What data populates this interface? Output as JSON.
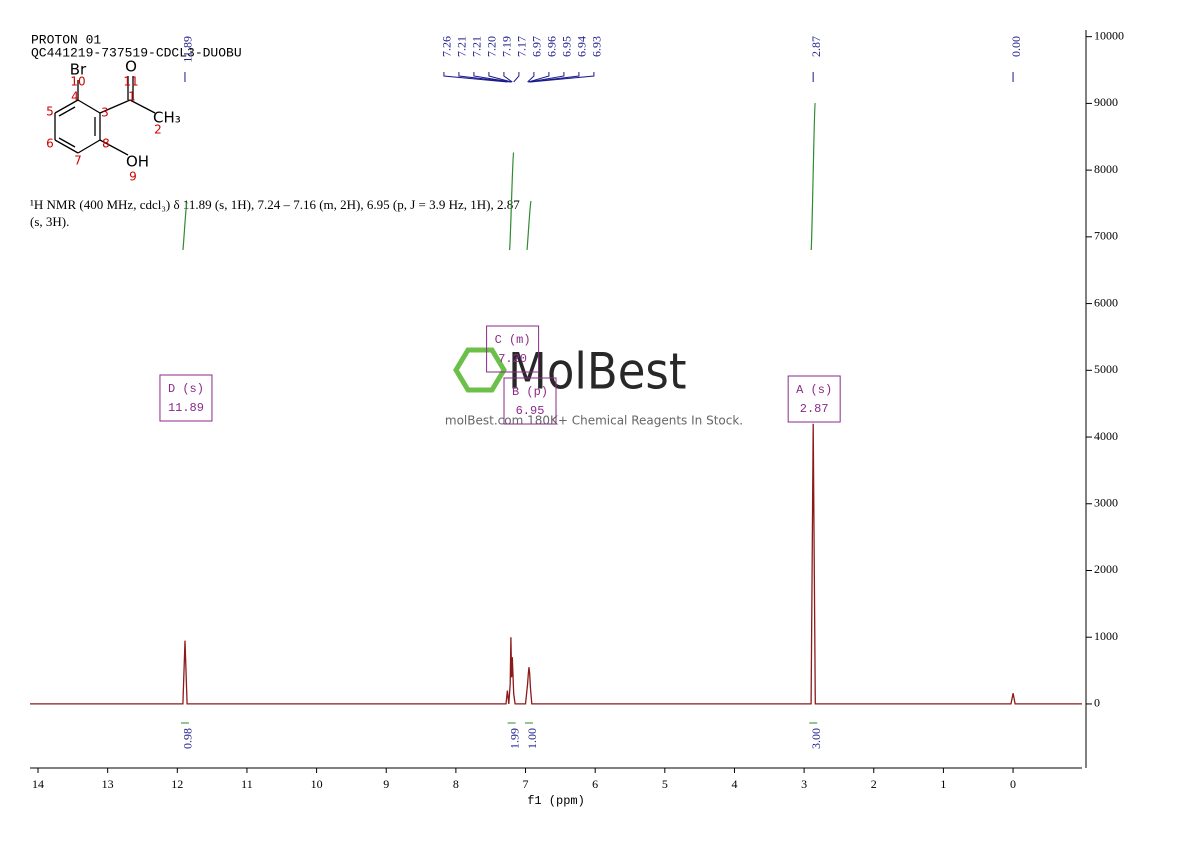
{
  "chart_data": {
    "type": "line",
    "header": [
      "PROTON 01",
      "QC441219-737519-CDCL3-DUOBU"
    ],
    "description": [
      "¹H NMR (400 MHz, cdcl₃) δ 11.89 (s, 1H), 7.24 – 7.16 (m, 2H), 6.95 (p, J = 3.9 Hz, 1H), 2.87",
      "(s, 3H)."
    ],
    "molecule": {
      "atoms": [
        "Br",
        "O",
        "CH₃",
        "OH"
      ],
      "numbers": [
        "10",
        "4",
        "11",
        "1",
        "3",
        "2",
        "5",
        "6",
        "8",
        "7",
        "9"
      ]
    },
    "watermark": [
      "MolBest",
      "molBest.com 180K+ Chemical Reagents In Stock."
    ],
    "xlabel": "f1 (ppm)",
    "xlim": [
      14.115,
      -0.99
    ],
    "xticks": [
      14,
      13,
      12,
      11,
      10,
      9,
      8,
      7,
      6,
      5,
      4,
      3,
      2,
      1,
      0
    ],
    "ylim": [
      -960,
      10100
    ],
    "yticks": [
      0,
      1000,
      2000,
      3000,
      4000,
      5000,
      6000,
      7000,
      8000,
      9000,
      10000
    ],
    "series": [
      {
        "name": "spectrum",
        "color": "#8b1a1a",
        "x": [
          14.115,
          11.92,
          11.89,
          11.86,
          7.28,
          7.26,
          7.24,
          7.22,
          7.21,
          7.2,
          7.19,
          7.17,
          7.15,
          7.0,
          6.97,
          6.96,
          6.95,
          6.94,
          6.93,
          6.91,
          2.9,
          2.87,
          2.84,
          0.03,
          0,
          -0.03,
          -0.99
        ],
        "values": [
          0,
          0,
          950,
          0,
          0,
          200,
          0,
          300,
          1000,
          400,
          700,
          150,
          0,
          0,
          300,
          450,
          550,
          450,
          250,
          0,
          0,
          4200,
          0,
          0,
          160,
          0,
          0
        ]
      }
    ],
    "peak_labels": [
      11.89,
      7.26,
      7.21,
      7.21,
      {
        "value": 7.2,
        "label": "7.20"
      },
      7.19,
      7.17,
      6.97,
      6.96,
      6.95,
      6.94,
      6.93,
      2.87,
      {
        "value": 0,
        "label": "0.00"
      }
    ],
    "integrals": {
      "x": [
        11.89,
        7.2,
        6.95,
        2.87
      ],
      "values": [
        0.98,
        1.99,
        1,
        3
      ],
      "value_labels": [
        "0.98",
        "1.99",
        "1.00",
        "3.00"
      ]
    },
    "multiplets": [
      {
        "x": 11.89,
        "title": "D (s)",
        "shift": "11.89"
      },
      {
        "x": 7.2,
        "title": "C (m)",
        "shift": "7.20"
      },
      {
        "x": 6.95,
        "title": "B (p)",
        "shift": "6.95"
      },
      {
        "x": 2.87,
        "title": "A (s)",
        "shift": "2.87"
      }
    ]
  }
}
